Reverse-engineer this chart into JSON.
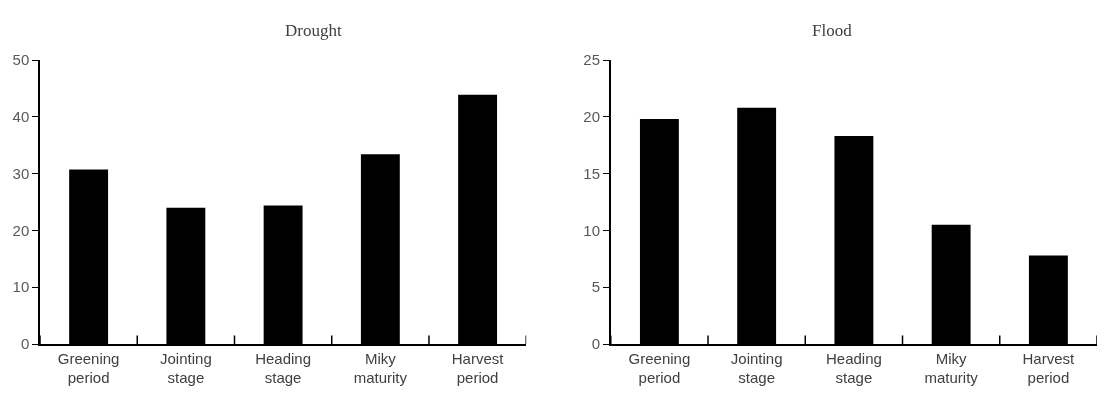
{
  "chart_data": [
    {
      "type": "bar",
      "title": "Drought",
      "categories": [
        "Greening period",
        "Jointing stage",
        "Heading stage",
        "Miky maturity",
        "Harvest period"
      ],
      "values": [
        30.7,
        24.0,
        24.4,
        33.4,
        43.9
      ],
      "color": "#000000",
      "ylim": [
        0,
        50
      ],
      "yticks": [
        0,
        10,
        20,
        30,
        40,
        50
      ]
    },
    {
      "type": "bar",
      "title": "Flood",
      "categories": [
        "Greening period",
        "Jointing stage",
        "Heading stage",
        "Miky maturity",
        "Harvest period"
      ],
      "values": [
        19.8,
        20.8,
        18.3,
        10.5,
        7.8
      ],
      "color": "#000000",
      "ylim": [
        0,
        25
      ],
      "yticks": [
        0,
        5,
        10,
        15,
        20,
        25
      ]
    }
  ]
}
